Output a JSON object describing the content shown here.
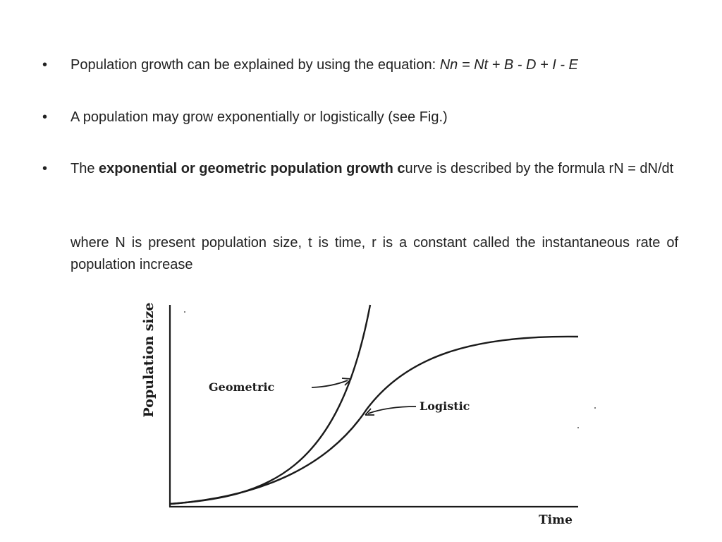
{
  "bullets": [
    {
      "marker": "•",
      "text": "Population growth can be explained by using the equation: ",
      "equation": "Nn = Nt + B - D + I - E"
    },
    {
      "marker": "•",
      "text": "A population may grow exponentially or logistically (see Fig.)"
    },
    {
      "marker": "•",
      "prefix": "The ",
      "bold": "exponential or geometric population growth c",
      "suffix": "urve is described by the formula rN = dN/dt"
    }
  ],
  "paragraph": "where N is present population size, t is time, r is a constant called the instantaneous rate of population increase",
  "figure": {
    "y_label": "Population size",
    "x_label": "Time",
    "labels": {
      "geometric": "Geometric",
      "logistic": "Logistic"
    },
    "colors": {
      "ink": "#1a1a1a"
    }
  }
}
